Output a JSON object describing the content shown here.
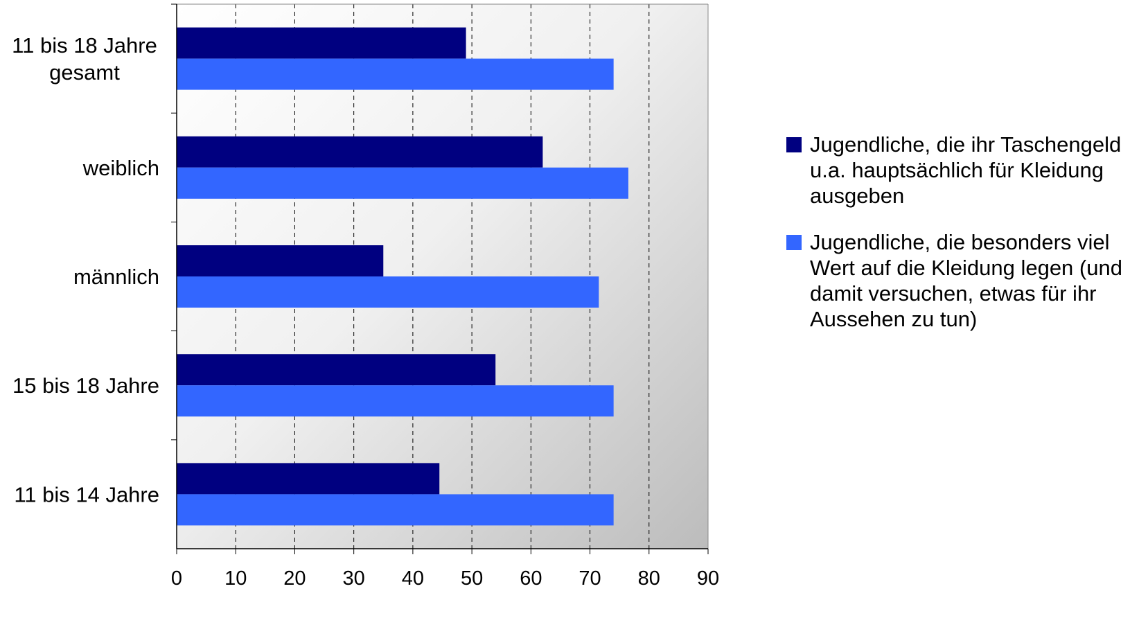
{
  "chart_data": {
    "type": "bar",
    "orientation": "horizontal",
    "categories": [
      "11 bis 18 Jahre gesamt",
      "weiblich",
      "männlich",
      "15 bis 18 Jahre",
      "11 bis 14 Jahre"
    ],
    "category_lines": [
      [
        "11 bis 18 Jahre",
        "gesamt"
      ],
      [
        "weiblich"
      ],
      [
        "männlich"
      ],
      [
        "15 bis 18 Jahre"
      ],
      [
        "11 bis 14 Jahre"
      ]
    ],
    "series": [
      {
        "name": "Jugendliche, die ihr Taschengeld u.a. hauptsächlich für Kleidung ausgeben",
        "color": "#000080",
        "values": [
          49,
          62,
          35,
          54,
          44.5
        ]
      },
      {
        "name": "Jugendliche, die besonders viel Wert auf die Kleidung legen (und damit versuchen, etwas für ihr Aussehen zu tun)",
        "color": "#3366ff",
        "values": [
          74,
          76.5,
          71.5,
          74,
          74
        ]
      }
    ],
    "xlim": [
      0,
      90
    ],
    "xticks": [
      "0",
      "10",
      "20",
      "30",
      "40",
      "50",
      "60",
      "70",
      "80",
      "90"
    ],
    "grid": "vertical dashed",
    "legend_position": "right",
    "plot_background": "gradient white to gray"
  }
}
